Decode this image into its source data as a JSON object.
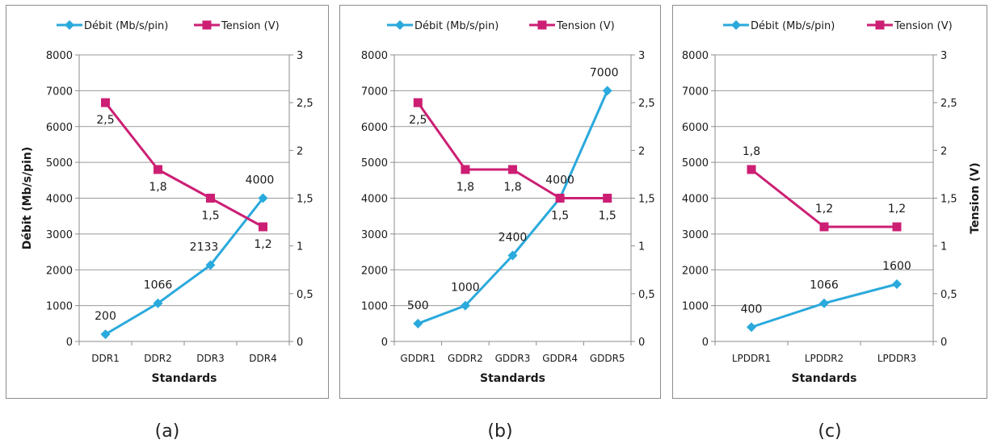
{
  "colors": {
    "debit": "#2aa9dc",
    "tension": "#cc1f74",
    "grid": "#9a9a9a",
    "axis": "#8c8c8c"
  },
  "chart_data": [
    {
      "type": "line",
      "caption": "(a)",
      "categories": [
        "DDR1",
        "DDR2",
        "DDR3",
        "DDR4"
      ],
      "series": [
        {
          "name": "Débit (Mb/s/pin)",
          "axis": "left",
          "marker": "diamond",
          "values": [
            200,
            1066,
            2133,
            4000
          ],
          "labels": [
            "200",
            "1066",
            "2133",
            "4000"
          ]
        },
        {
          "name": "Tension (V)",
          "axis": "right",
          "marker": "square",
          "values": [
            2.5,
            1.8,
            1.5,
            1.2
          ],
          "labels": [
            "2,5",
            "1,8",
            "1,5",
            "1,2"
          ]
        }
      ],
      "xlabel": "Standards",
      "ylabel": "Débit (Mb/s/pin)",
      "y2label": "",
      "ylim": [
        0,
        8000
      ],
      "y2lim": [
        0,
        3
      ],
      "yticks": [
        "0",
        "1000",
        "2000",
        "3000",
        "4000",
        "5000",
        "6000",
        "7000",
        "8000"
      ],
      "y2ticks": [
        "0",
        "0,5",
        "1",
        "1,5",
        "2",
        "2,5",
        "3"
      ],
      "grid": true,
      "legend": "top"
    },
    {
      "type": "line",
      "caption": "(b)",
      "categories": [
        "GDDR1",
        "GDDR2",
        "GDDR3",
        "GDDR4",
        "GDDR5"
      ],
      "series": [
        {
          "name": "Débit (Mb/s/pin)",
          "axis": "left",
          "marker": "diamond",
          "values": [
            500,
            1000,
            2400,
            4000,
            7000
          ],
          "labels": [
            "500",
            "1000",
            "2400",
            "4000",
            "7000"
          ]
        },
        {
          "name": "Tension (V)",
          "axis": "right",
          "marker": "square",
          "values": [
            2.5,
            1.8,
            1.8,
            1.5,
            1.5
          ],
          "labels": [
            "2,5",
            "1,8",
            "1,8",
            "1,5",
            "1,5"
          ]
        }
      ],
      "xlabel": "Standards",
      "ylabel": "",
      "y2label": "",
      "ylim": [
        0,
        8000
      ],
      "y2lim": [
        0,
        3
      ],
      "yticks": [
        "0",
        "1000",
        "2000",
        "3000",
        "4000",
        "5000",
        "6000",
        "7000",
        "8000"
      ],
      "y2ticks": [
        "0",
        "0,5",
        "1",
        "1,5",
        "2",
        "2,5",
        "3"
      ],
      "grid": true,
      "legend": "top"
    },
    {
      "type": "line",
      "caption": "(c)",
      "categories": [
        "LPDDR1",
        "LPDDR2",
        "LPDDR3"
      ],
      "series": [
        {
          "name": "Débit (Mb/s/pin)",
          "axis": "left",
          "marker": "diamond",
          "values": [
            400,
            1066,
            1600
          ],
          "labels": [
            "400",
            "1066",
            "1600"
          ]
        },
        {
          "name": "Tension (V)",
          "axis": "right",
          "marker": "square",
          "values": [
            1.8,
            1.2,
            1.2
          ],
          "labels": [
            "1,8",
            "1,2",
            "1,2"
          ]
        }
      ],
      "xlabel": "Standards",
      "ylabel": "",
      "y2label": "Tension (V)",
      "ylim": [
        0,
        8000
      ],
      "y2lim": [
        0,
        3
      ],
      "yticks": [
        "0",
        "1000",
        "2000",
        "3000",
        "4000",
        "5000",
        "6000",
        "7000",
        "8000"
      ],
      "y2ticks": [
        "0",
        "0,5",
        "1",
        "1,5",
        "2",
        "2,5",
        "3"
      ],
      "grid": true,
      "legend": "top"
    }
  ]
}
